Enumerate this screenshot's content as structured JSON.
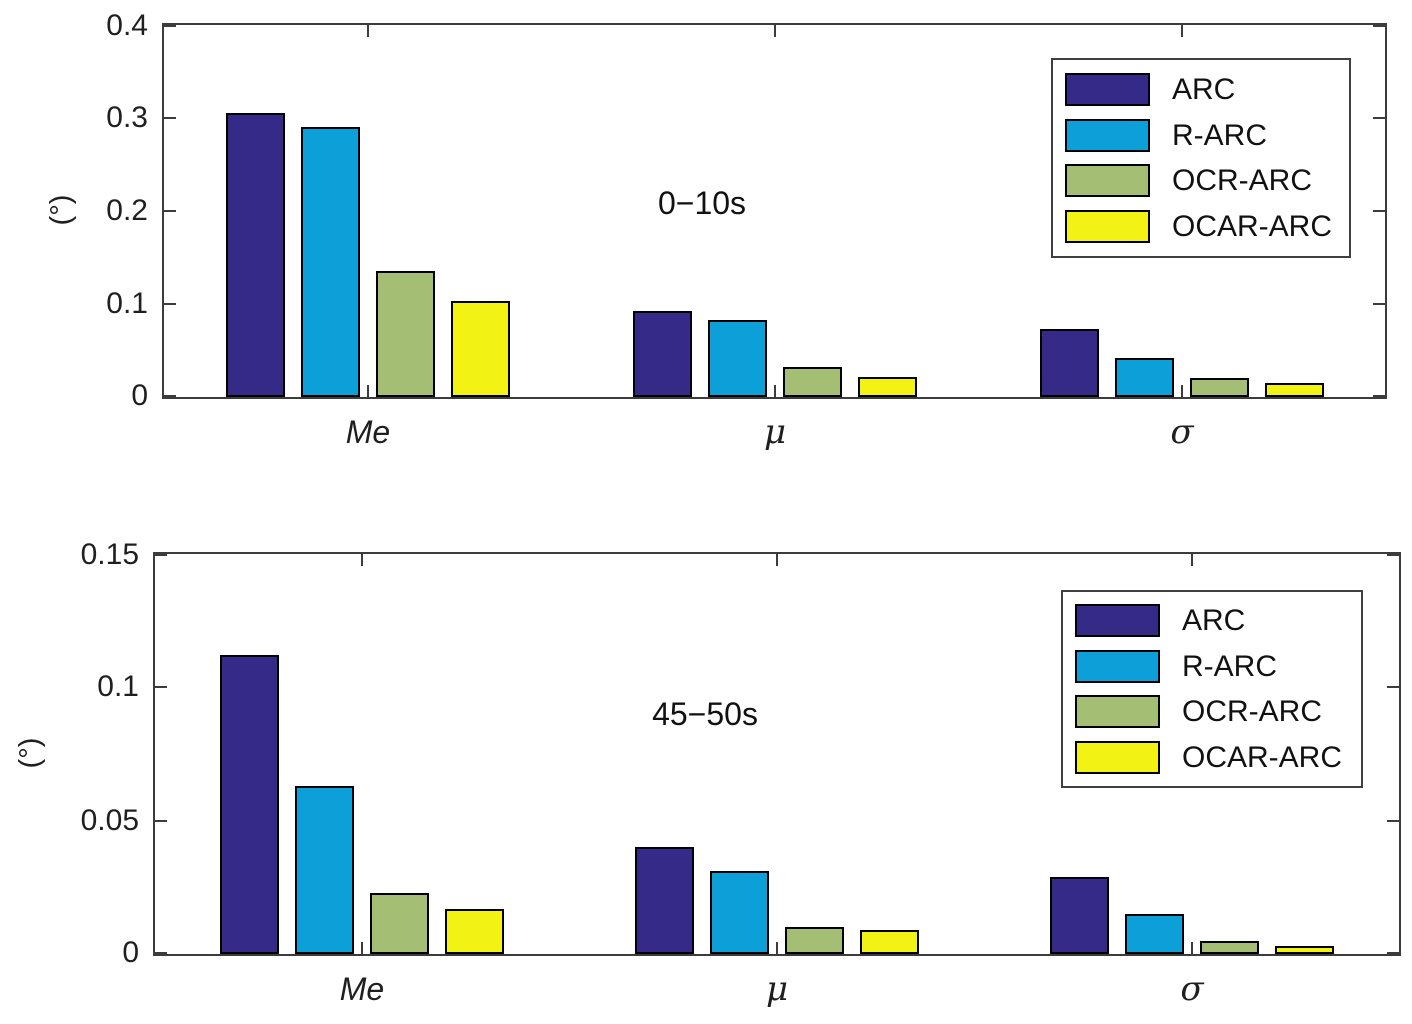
{
  "style": {
    "background": "#ffffff",
    "axis_color": "#3c3c3c",
    "text_color": "#1f1f1f",
    "bar_edge_color": "#000000"
  },
  "chart_data": [
    {
      "type": "bar",
      "annotation": "0−10s",
      "ylabel": "(°)",
      "xlabel": "",
      "categories": [
        "Me",
        "μ",
        "σ"
      ],
      "series": [
        {
          "name": "ARC",
          "color": "#352a87",
          "values": [
            0.305,
            0.093,
            0.073
          ]
        },
        {
          "name": "R-ARC",
          "color": "#0c9fd8",
          "values": [
            0.29,
            0.083,
            0.042
          ]
        },
        {
          "name": "OCR-ARC",
          "color": "#a4bf74",
          "values": [
            0.135,
            0.032,
            0.02
          ]
        },
        {
          "name": "OCAR-ARC",
          "color": "#f2f214",
          "values": [
            0.103,
            0.021,
            0.015
          ]
        }
      ],
      "ylim": [
        0,
        0.4
      ],
      "yticks": [
        "0",
        "0.1",
        "0.2",
        "0.3",
        "0.4"
      ],
      "grid": false,
      "legend_position": "top-right"
    },
    {
      "type": "bar",
      "annotation": "45−50s",
      "ylabel": "(°)",
      "xlabel": "",
      "categories": [
        "Me",
        "μ",
        "σ"
      ],
      "series": [
        {
          "name": "ARC",
          "color": "#352a87",
          "values": [
            0.112,
            0.04,
            0.029
          ]
        },
        {
          "name": "R-ARC",
          "color": "#0c9fd8",
          "values": [
            0.063,
            0.031,
            0.015
          ]
        },
        {
          "name": "OCR-ARC",
          "color": "#a4bf74",
          "values": [
            0.023,
            0.01,
            0.005
          ]
        },
        {
          "name": "OCAR-ARC",
          "color": "#f2f214",
          "values": [
            0.017,
            0.009,
            0.003
          ]
        }
      ],
      "ylim": [
        0,
        0.15
      ],
      "yticks": [
        "0",
        "0.05",
        "0.1",
        "0.15"
      ],
      "grid": false,
      "legend_position": "top-right"
    }
  ]
}
